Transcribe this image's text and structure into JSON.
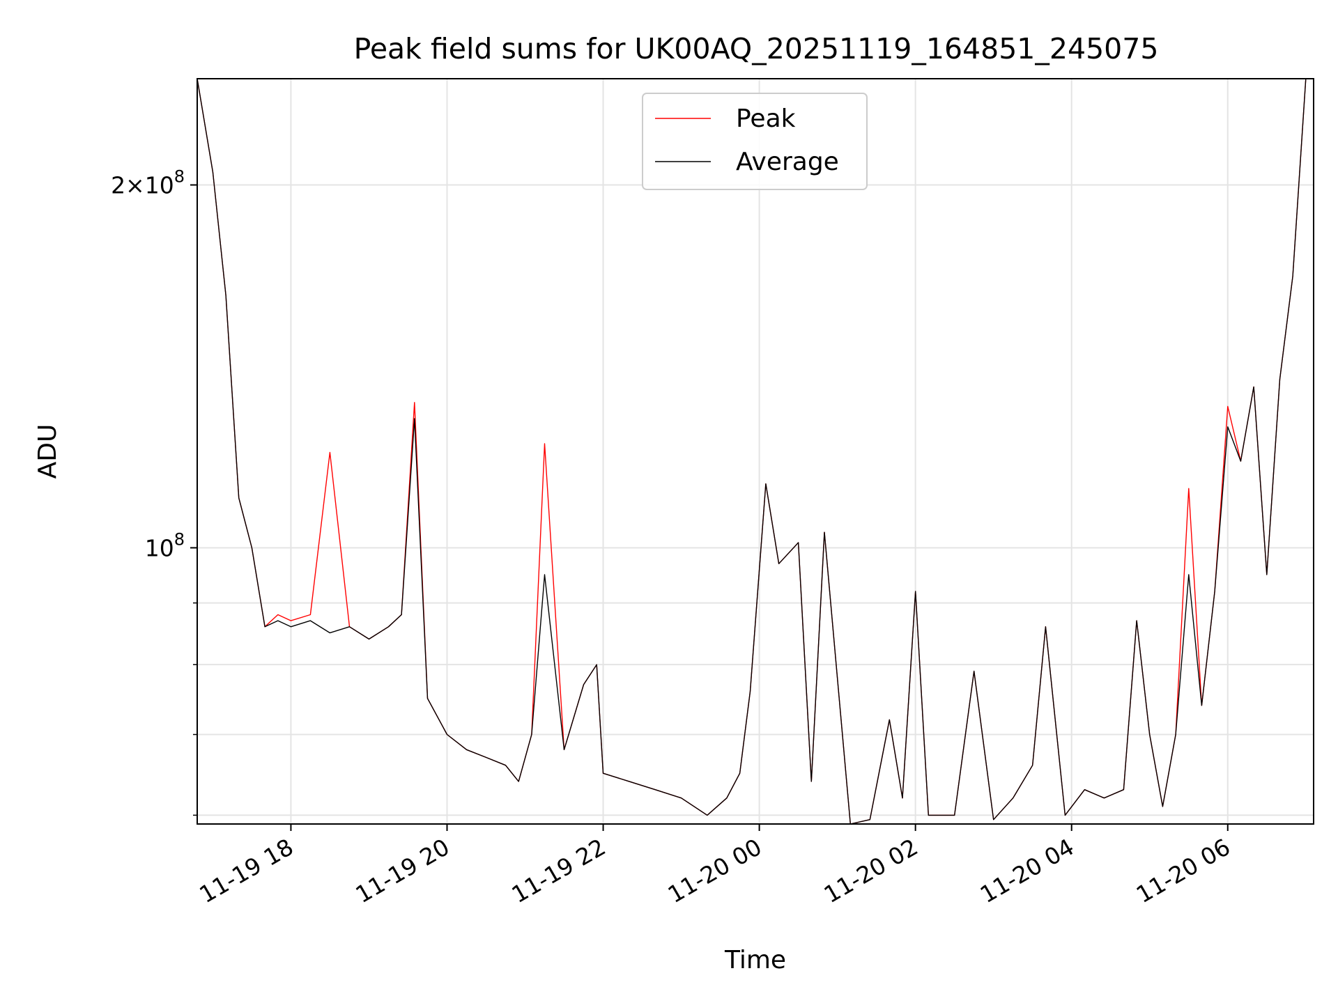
{
  "chart_data": {
    "type": "line",
    "title": "Peak field sums for UK00AQ_20251119_164851_245075",
    "xlabel": "Time",
    "ylabel": "ADU",
    "y_scale": "log",
    "xlim": [
      "2025-11-19 16:48",
      "2025-11-20 07:06"
    ],
    "ylim": [
      59000000,
      245000000
    ],
    "grid": true,
    "legend_placement": "top-center",
    "x_tick_labels": [
      "11-19 18",
      "11-19 20",
      "11-19 22",
      "11-20 00",
      "11-20 02",
      "11-20 04",
      "11-20 06"
    ],
    "x_ticks": [
      "2025-11-19 18:00",
      "2025-11-19 20:00",
      "2025-11-19 22:00",
      "2025-11-20 00:00",
      "2025-11-20 02:00",
      "2025-11-20 04:00",
      "2025-11-20 06:00"
    ],
    "y_tick_labels": [
      {
        "value": 100000000,
        "base": "10",
        "exp": "8"
      },
      {
        "value": 200000000,
        "mant": "2",
        "base": "10",
        "exp": "8"
      }
    ],
    "y_minor_ticks": [
      60000000,
      70000000,
      80000000,
      90000000
    ],
    "x": [
      "2025-11-19 16:48",
      "2025-11-19 17:00",
      "2025-11-19 17:10",
      "2025-11-19 17:20",
      "2025-11-19 17:30",
      "2025-11-19 17:40",
      "2025-11-19 17:50",
      "2025-11-19 18:00",
      "2025-11-19 18:15",
      "2025-11-19 18:30",
      "2025-11-19 18:45",
      "2025-11-19 19:00",
      "2025-11-19 19:15",
      "2025-11-19 19:25",
      "2025-11-19 19:35",
      "2025-11-19 19:45",
      "2025-11-19 20:00",
      "2025-11-19 20:15",
      "2025-11-19 20:30",
      "2025-11-19 20:45",
      "2025-11-19 20:55",
      "2025-11-19 21:05",
      "2025-11-19 21:15",
      "2025-11-19 21:30",
      "2025-11-19 21:45",
      "2025-11-19 21:55",
      "2025-11-19 22:00",
      "2025-11-19 22:20",
      "2025-11-19 22:40",
      "2025-11-19 23:00",
      "2025-11-19 23:20",
      "2025-11-19 23:35",
      "2025-11-19 23:45",
      "2025-11-19 23:53",
      "2025-11-20 00:05",
      "2025-11-20 00:15",
      "2025-11-20 00:30",
      "2025-11-20 00:40",
      "2025-11-20 00:50",
      "2025-11-20 01:00",
      "2025-11-20 01:10",
      "2025-11-20 01:25",
      "2025-11-20 01:40",
      "2025-11-20 01:50",
      "2025-11-20 02:00",
      "2025-11-20 02:10",
      "2025-11-20 02:30",
      "2025-11-20 02:45",
      "2025-11-20 03:00",
      "2025-11-20 03:15",
      "2025-11-20 03:30",
      "2025-11-20 03:40",
      "2025-11-20 03:55",
      "2025-11-20 04:10",
      "2025-11-20 04:25",
      "2025-11-20 04:40",
      "2025-11-20 04:50",
      "2025-11-20 05:00",
      "2025-11-20 05:10",
      "2025-11-20 05:20",
      "2025-11-20 05:30",
      "2025-11-20 05:40",
      "2025-11-20 05:50",
      "2025-11-20 06:00",
      "2025-11-20 06:10",
      "2025-11-20 06:20",
      "2025-11-20 06:30",
      "2025-11-20 06:40",
      "2025-11-20 06:50",
      "2025-11-20 07:00"
    ],
    "series": [
      {
        "name": "Peak",
        "color": "#ff0000",
        "values": [
          245000000,
          205000000,
          162000000,
          110000000,
          100000000,
          86000000,
          88000000,
          87000000,
          88000000,
          120000000,
          86000000,
          84000000,
          86000000,
          88000000,
          132000000,
          75000000,
          70000000,
          68000000,
          67000000,
          66000000,
          64000000,
          70000000,
          122000000,
          68000000,
          77000000,
          80000000,
          65000000,
          64000000,
          63000000,
          62000000,
          60000000,
          62000000,
          65000000,
          76000000,
          113000000,
          97000000,
          101000000,
          64000000,
          103000000,
          78000000,
          59000000,
          59500000,
          72000000,
          62000000,
          92000000,
          60000000,
          60000000,
          79000000,
          59500000,
          62000000,
          66000000,
          86000000,
          60000000,
          63000000,
          62000000,
          63000000,
          87000000,
          70000000,
          61000000,
          70000000,
          112000000,
          74000000,
          92000000,
          131000000,
          118000000,
          136000000,
          95000000,
          138000000,
          168000000,
          245000000
        ]
      },
      {
        "name": "Average",
        "color": "#000000",
        "values": [
          245000000,
          205000000,
          162000000,
          110000000,
          100000000,
          86000000,
          87000000,
          86000000,
          87000000,
          85000000,
          86000000,
          84000000,
          86000000,
          88000000,
          128000000,
          75000000,
          70000000,
          68000000,
          67000000,
          66000000,
          64000000,
          70000000,
          95000000,
          68000000,
          77000000,
          80000000,
          65000000,
          64000000,
          63000000,
          62000000,
          60000000,
          62000000,
          65000000,
          76000000,
          113000000,
          97000000,
          101000000,
          64000000,
          103000000,
          78000000,
          59000000,
          59500000,
          72000000,
          62000000,
          92000000,
          60000000,
          60000000,
          79000000,
          59500000,
          62000000,
          66000000,
          86000000,
          60000000,
          63000000,
          62000000,
          63000000,
          87000000,
          70000000,
          61000000,
          70000000,
          95000000,
          74000000,
          92000000,
          126000000,
          118000000,
          136000000,
          95000000,
          138000000,
          168000000,
          245000000
        ]
      }
    ]
  }
}
